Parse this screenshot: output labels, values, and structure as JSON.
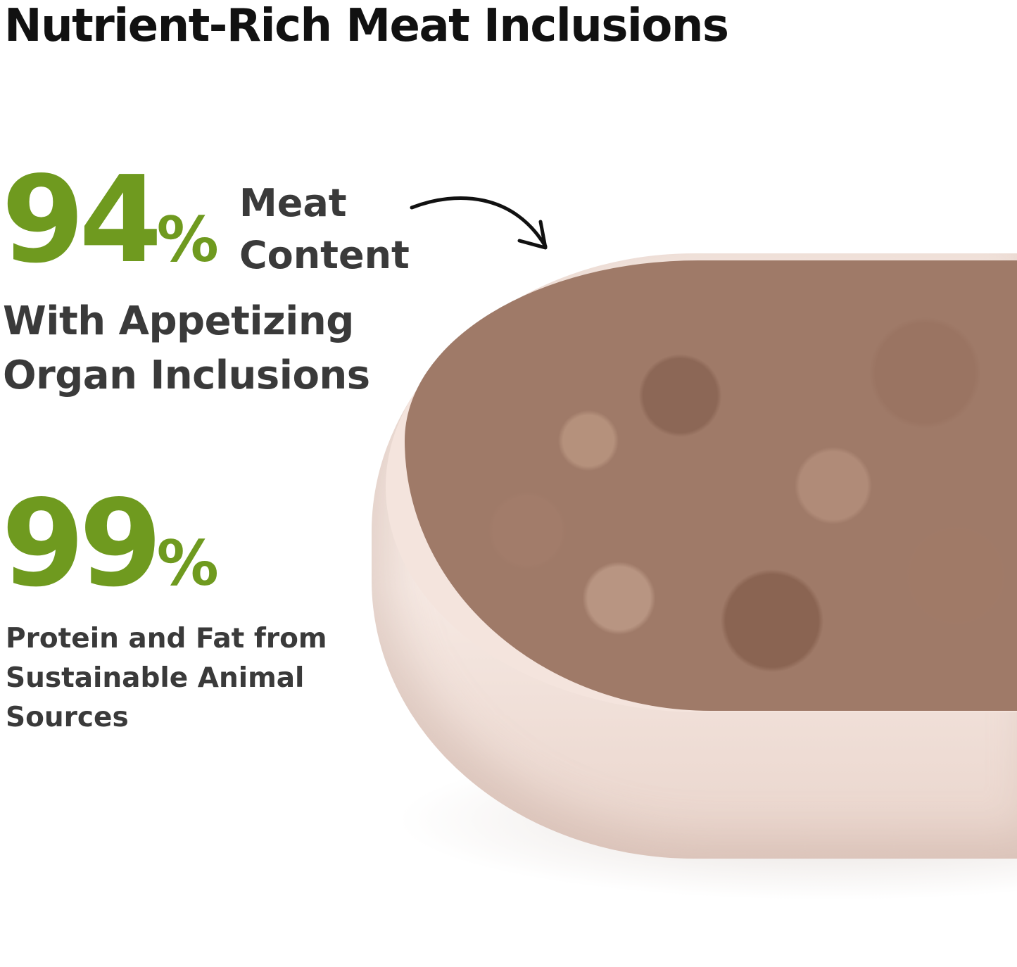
{
  "title": "Nutrient-Rich Meat Inclusions",
  "stat1": {
    "number": "94",
    "unit": "%",
    "label_line1": "Meat",
    "label_line2": "Content"
  },
  "stat1_sub": {
    "line1": "With Appetizing",
    "line2": "Organ Inclusions"
  },
  "stat2": {
    "number": "99",
    "unit": "%"
  },
  "stat2_sub": {
    "line1": "Protein and Fat from",
    "line2": "Sustainable Animal",
    "line3": "Sources"
  },
  "colors": {
    "accent_green": "#6f9a1f",
    "text_dark": "#3a3a3a",
    "title": "#111111"
  },
  "image": {
    "subject": "bowl-of-wet-food"
  }
}
